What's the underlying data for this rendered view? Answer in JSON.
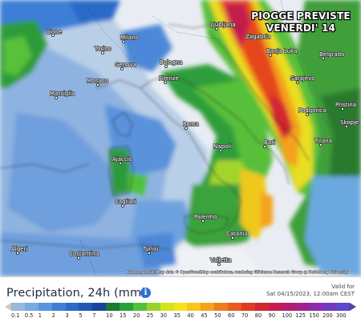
{
  "title": {
    "line1": "PIOGGE PREVISTE",
    "line2": "VENERDI' 14"
  },
  "legend": {
    "title": "Precipitation, 24h (mm)",
    "info_icon": "info-icon",
    "valid_label": "Valid for",
    "valid_time": "Sat 04/15/2023, 12:00am CEST",
    "ticks": [
      "0.1",
      "0.5",
      "1",
      "2",
      "3",
      "5",
      "7",
      "10",
      "15",
      "20",
      "25",
      "30",
      "35",
      "40",
      "45",
      "50",
      "60",
      "70",
      "80",
      "90",
      "100",
      "125",
      "150",
      "200",
      "300"
    ],
    "colors": [
      "#9bb8d6",
      "#78a9e0",
      "#5a95dd",
      "#3d7fd4",
      "#2a6ac8",
      "#1f58b6",
      "#17459c",
      "#1d7a2f",
      "#27a23a",
      "#4fc23a",
      "#9ad22e",
      "#d6e21f",
      "#f6e21a",
      "#f7c61a",
      "#f4a21b",
      "#ef7b1c",
      "#e85a1d",
      "#df3b22",
      "#d22630",
      "#c41c4c",
      "#b51c6d",
      "#a3208e",
      "#8e2bab",
      "#7338c0",
      "#5b48cc"
    ]
  },
  "attribution": "Kartenmaterial: Map data © OpenStreetMap contributors, rendering GIScience Research Group @ Heidelberg University",
  "cities": [
    {
      "name": "Lione"
    },
    {
      "name": "Torino"
    },
    {
      "name": "Milano"
    },
    {
      "name": "Genova"
    },
    {
      "name": "Monaco"
    },
    {
      "name": "Marsiglia"
    },
    {
      "name": "Bologna"
    },
    {
      "name": "Firenze"
    },
    {
      "name": "Ljubljana"
    },
    {
      "name": "Zagabria"
    },
    {
      "name": "Banja Luka"
    },
    {
      "name": "Sarajevo"
    },
    {
      "name": "Belgrado"
    },
    {
      "name": "Podgorica"
    },
    {
      "name": "Pristina"
    },
    {
      "name": "Roma"
    },
    {
      "name": "Napoli"
    },
    {
      "name": "Tirana"
    },
    {
      "name": "Skopje"
    },
    {
      "name": "Bari"
    },
    {
      "name": "Ajaccio"
    },
    {
      "name": "Cagliari"
    },
    {
      "name": "Palermo"
    },
    {
      "name": "Catania"
    },
    {
      "name": "Valletta"
    },
    {
      "name": "Algeri"
    },
    {
      "name": "Tunisi"
    },
    {
      "name": "Costantina"
    }
  ]
}
